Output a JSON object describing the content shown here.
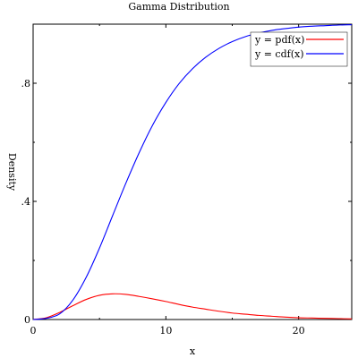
{
  "chart_data": {
    "type": "line",
    "title": "Gamma Distribution",
    "xlabel": "x",
    "ylabel": "Density",
    "xlim": [
      0,
      24
    ],
    "ylim": [
      0,
      1
    ],
    "x_ticks": [
      0,
      10,
      20
    ],
    "x_tick_labels": [
      "0",
      "10",
      "20"
    ],
    "y_ticks": [
      0,
      0.4,
      0.8
    ],
    "y_tick_labels": [
      "0",
      ".4",
      ".8"
    ],
    "grid": false,
    "legend_position": "top-right",
    "series": [
      {
        "name": "y = pdf(x)",
        "color": "#ff0000",
        "x": [
          0,
          1,
          2,
          3,
          4,
          5,
          6,
          7,
          8,
          9,
          10,
          11,
          12,
          13,
          14,
          15,
          16,
          17,
          18,
          19,
          20,
          21,
          22,
          23,
          24
        ],
        "y": [
          0,
          0.006,
          0.024,
          0.047,
          0.068,
          0.082,
          0.087,
          0.085,
          0.078,
          0.07,
          0.061,
          0.051,
          0.042,
          0.035,
          0.028,
          0.022,
          0.018,
          0.014,
          0.011,
          0.008,
          0.006,
          0.005,
          0.004,
          0.003,
          0.002
        ]
      },
      {
        "name": "y = cdf(x)",
        "color": "#0000ff",
        "x": [
          0,
          1,
          2,
          3,
          4,
          5,
          6,
          7,
          8,
          9,
          10,
          11,
          12,
          13,
          14,
          15,
          16,
          17,
          18,
          19,
          20,
          21,
          22,
          23,
          24
        ],
        "y": [
          0,
          0.004,
          0.019,
          0.066,
          0.143,
          0.242,
          0.353,
          0.463,
          0.566,
          0.658,
          0.735,
          0.799,
          0.849,
          0.888,
          0.918,
          0.941,
          0.958,
          0.97,
          0.979,
          0.985,
          0.99,
          0.993,
          0.995,
          0.997,
          0.998
        ]
      }
    ]
  }
}
